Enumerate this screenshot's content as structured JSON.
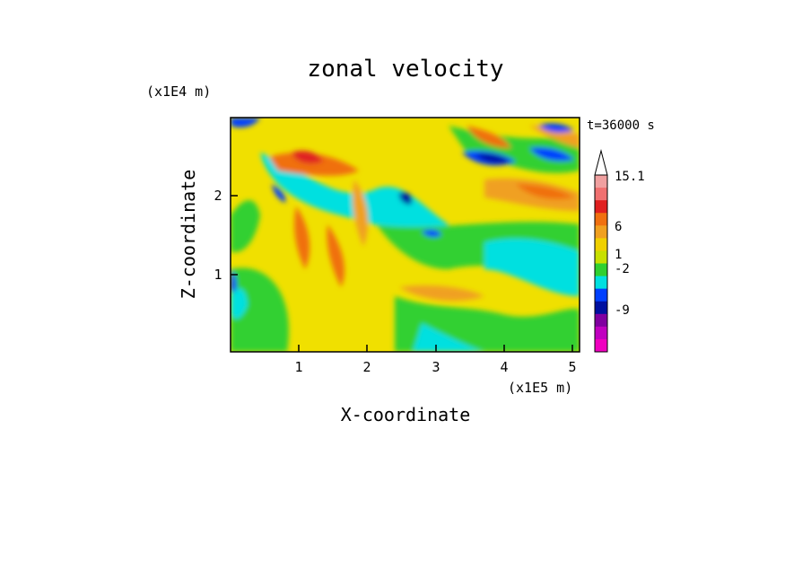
{
  "chart_data": {
    "type": "heatmap",
    "title": "zonal velocity",
    "xlabel": "X-coordinate",
    "ylabel": "Z-coordinate",
    "x_unit": "(x1E5 m)",
    "y_unit": "(x1E4 m)",
    "time_label": "t=36000 s",
    "xlim": [
      0,
      5.1
    ],
    "ylim": [
      0,
      2.95
    ],
    "x_ticks": [
      "1",
      "2",
      "3",
      "4",
      "5"
    ],
    "y_ticks": [
      "1",
      "2"
    ],
    "colorbar": {
      "labels": [
        "15.1",
        "6",
        "1",
        "-2",
        "-9"
      ],
      "colors": [
        "#f0a0a0",
        "#f07070",
        "#e02020",
        "#f07010",
        "#f0a020",
        "#f0d000",
        "#c8e000",
        "#30d030",
        "#00e0e0",
        "#0040ff",
        "#0010a0",
        "#8000a0",
        "#c000c0",
        "#f000c0"
      ]
    }
  }
}
